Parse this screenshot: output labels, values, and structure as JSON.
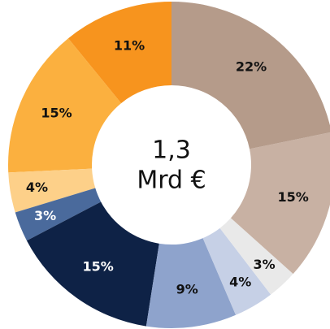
{
  "chart_data": {
    "type": "donut",
    "center_text": [
      "1,3",
      "Mrd €"
    ],
    "categories": [
      null,
      null,
      null,
      null,
      null,
      null,
      null,
      null,
      null,
      null
    ],
    "values": [
      22,
      15,
      3,
      4,
      9,
      15,
      3,
      4,
      15,
      11
    ],
    "value_labels": [
      "22%",
      "15%",
      "3%",
      "4%",
      "9%",
      "15%",
      "3%",
      "4%",
      "15%",
      "11%"
    ],
    "colors": [
      "#b59b8a",
      "#c8b1a3",
      "#e9e9e9",
      "#c6d0e6",
      "#8ea3cc",
      "#0e2246",
      "#4a6a9c",
      "#fdd089",
      "#fbb03f",
      "#f7941e"
    ]
  }
}
